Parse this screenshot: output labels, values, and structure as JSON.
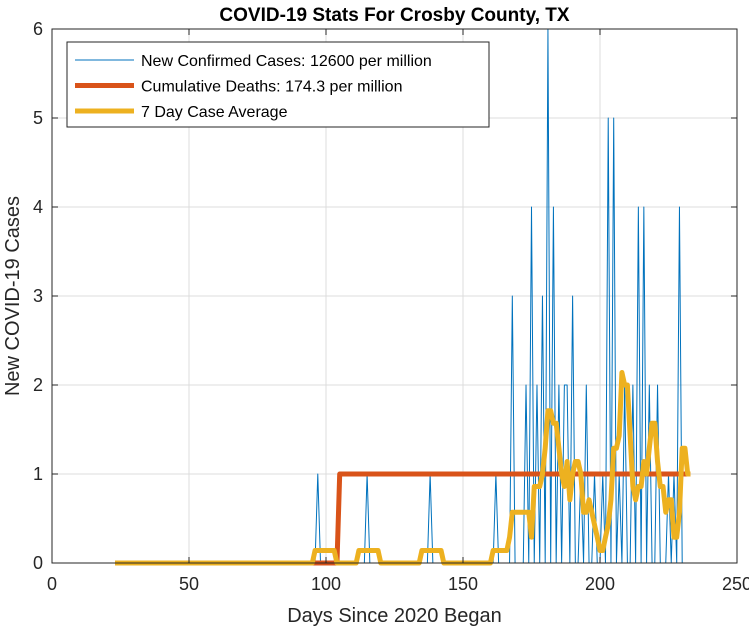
{
  "chart_data": {
    "type": "line",
    "title": "COVID-19 Stats For Crosby County, TX",
    "xlabel": "Days Since 2020 Began",
    "ylabel": "New COVID-19 Cases",
    "xlim": [
      0,
      250
    ],
    "ylim": [
      0,
      6
    ],
    "xticks": [
      0,
      50,
      100,
      150,
      200,
      250
    ],
    "yticks": [
      0,
      1,
      2,
      3,
      4,
      5,
      6
    ],
    "grid": true,
    "legend_position": "top-left",
    "series": [
      {
        "name": "New Confirmed Cases: 12600 per million",
        "color": "#0072BD",
        "line_width": 1,
        "x": [
          23,
          96,
          97,
          98,
          114,
          115,
          116,
          137,
          138,
          139,
          161,
          162,
          163,
          167,
          168,
          169,
          172,
          173,
          174,
          175,
          176,
          177,
          178,
          179,
          180,
          181,
          182,
          183,
          184,
          185,
          186,
          187,
          188,
          189,
          190,
          191,
          192,
          193,
          194,
          195,
          196,
          197,
          198,
          199,
          200,
          201,
          202,
          203,
          204,
          205,
          206,
          207,
          208,
          209,
          210,
          211,
          212,
          213,
          214,
          215,
          216,
          217,
          218,
          219,
          220,
          221,
          222,
          223,
          224,
          225,
          226,
          227,
          228,
          229,
          230,
          231,
          232,
          233
        ],
        "y": [
          0,
          0,
          1,
          0,
          0,
          1,
          0,
          0,
          1,
          0,
          0,
          1,
          0,
          0,
          3,
          0,
          0,
          2,
          0,
          4,
          0,
          2,
          0,
          3,
          0,
          6,
          0,
          4,
          0,
          2,
          0,
          2,
          2,
          0,
          3,
          0,
          0,
          1,
          0,
          2,
          0,
          0,
          1,
          0,
          0,
          1,
          0,
          5,
          0,
          5,
          0,
          1,
          0,
          2,
          0,
          0,
          2,
          0,
          4,
          0,
          4,
          0,
          2,
          0,
          0,
          2,
          0,
          0,
          0,
          1,
          0,
          1,
          0,
          4,
          0,
          0,
          0,
          0
        ]
      },
      {
        "name": "Cumulative Deaths: 174.3 per million",
        "color": "#D95319",
        "line_width": 5,
        "x": [
          23,
          104,
          105,
          233
        ],
        "y": [
          0,
          0,
          1,
          1
        ]
      },
      {
        "name": "7 Day Case Average",
        "color": "#EDB120",
        "line_width": 5,
        "x": [
          23,
          95,
          96,
          97,
          102,
          103,
          104,
          111,
          112,
          113,
          118,
          119,
          120,
          134,
          135,
          136,
          141,
          142,
          143,
          160,
          161,
          162,
          166,
          167,
          168,
          173,
          174,
          175,
          176,
          177,
          178,
          179,
          180,
          181,
          182,
          183,
          184,
          185,
          186,
          187,
          188,
          189,
          190,
          191,
          192,
          193,
          194,
          195,
          196,
          197,
          198,
          199,
          200,
          201,
          202,
          203,
          204,
          205,
          206,
          207,
          208,
          209,
          210,
          211,
          212,
          213,
          214,
          215,
          216,
          217,
          218,
          219,
          220,
          221,
          222,
          223,
          224,
          225,
          226,
          227,
          228,
          229,
          230,
          231,
          232,
          233
        ],
        "y": [
          0,
          0,
          0.14,
          0.14,
          0.14,
          0.14,
          0,
          0,
          0.14,
          0.14,
          0.14,
          0.14,
          0,
          0,
          0.14,
          0.14,
          0.14,
          0.14,
          0,
          0,
          0.14,
          0.14,
          0.14,
          0.29,
          0.57,
          0.57,
          0.57,
          0.29,
          0.86,
          0.86,
          0.86,
          1.0,
          1.29,
          1.71,
          1.71,
          1.57,
          1.57,
          1.29,
          1.0,
          0.86,
          1.14,
          0.71,
          1.0,
          1.14,
          1.14,
          1.0,
          0.57,
          0.57,
          0.71,
          0.57,
          0.43,
          0.29,
          0.14,
          0.14,
          0.29,
          0.43,
          0.71,
          1.29,
          1.29,
          1.43,
          2.14,
          2.0,
          2.0,
          1.43,
          0.86,
          0.71,
          0.86,
          0.86,
          1.14,
          1.0,
          1.29,
          1.57,
          1.57,
          1.14,
          0.86,
          0.86,
          0.57,
          0.71,
          0.71,
          0.29,
          0.29,
          0.57,
          1.29,
          1.29,
          1.0,
          1.0
        ]
      }
    ]
  }
}
